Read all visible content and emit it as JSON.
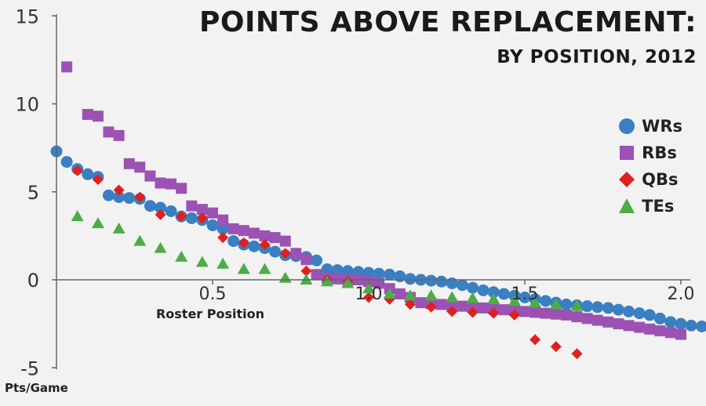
{
  "chart_data": {
    "type": "scatter",
    "title": "POINTS ABOVE REPLACEMENT:",
    "subtitle": "BY POSITION, 2012",
    "xlabel": "Roster Position",
    "ylabel": "Pts/Game",
    "xlim": [
      0.0,
      2.0
    ],
    "ylim": [
      -5,
      15
    ],
    "xticks": [
      {
        "value": 0.5,
        "label": "0.5"
      },
      {
        "value": 1.0,
        "label": "1.0"
      },
      {
        "value": 1.5,
        "label": "1.5"
      },
      {
        "value": 2.0,
        "label": "2.0"
      }
    ],
    "yticks": [
      {
        "value": -5,
        "label": "-5"
      },
      {
        "value": 0,
        "label": "0"
      },
      {
        "value": 5,
        "label": "5"
      },
      {
        "value": 10,
        "label": "10"
      },
      {
        "value": 15,
        "label": "15"
      }
    ],
    "legend_position": "right",
    "series": [
      {
        "name": "WRs",
        "marker": "circle",
        "color": "#3a7fc1",
        "points": [
          [
            0.0,
            7.3
          ],
          [
            0.033,
            6.7
          ],
          [
            0.067,
            6.3
          ],
          [
            0.1,
            6.0
          ],
          [
            0.133,
            5.85
          ],
          [
            0.167,
            4.8
          ],
          [
            0.2,
            4.7
          ],
          [
            0.233,
            4.65
          ],
          [
            0.267,
            4.6
          ],
          [
            0.3,
            4.2
          ],
          [
            0.333,
            4.1
          ],
          [
            0.367,
            3.9
          ],
          [
            0.4,
            3.6
          ],
          [
            0.433,
            3.5
          ],
          [
            0.467,
            3.4
          ],
          [
            0.5,
            3.1
          ],
          [
            0.533,
            2.9
          ],
          [
            0.567,
            2.2
          ],
          [
            0.6,
            2.0
          ],
          [
            0.633,
            1.9
          ],
          [
            0.667,
            1.8
          ],
          [
            0.7,
            1.6
          ],
          [
            0.733,
            1.4
          ],
          [
            0.767,
            1.35
          ],
          [
            0.8,
            1.3
          ],
          [
            0.833,
            1.1
          ],
          [
            0.867,
            0.6
          ],
          [
            0.9,
            0.55
          ],
          [
            0.933,
            0.5
          ],
          [
            0.967,
            0.45
          ],
          [
            1.0,
            0.4
          ],
          [
            1.033,
            0.35
          ],
          [
            1.067,
            0.3
          ],
          [
            1.1,
            0.2
          ],
          [
            1.133,
            0.05
          ],
          [
            1.167,
            0.0
          ],
          [
            1.2,
            -0.05
          ],
          [
            1.233,
            -0.1
          ],
          [
            1.267,
            -0.2
          ],
          [
            1.3,
            -0.3
          ],
          [
            1.333,
            -0.45
          ],
          [
            1.367,
            -0.6
          ],
          [
            1.4,
            -0.7
          ],
          [
            1.433,
            -0.8
          ],
          [
            1.467,
            -0.9
          ],
          [
            1.5,
            -1.0
          ],
          [
            1.533,
            -1.1
          ],
          [
            1.567,
            -1.2
          ],
          [
            1.6,
            -1.3
          ],
          [
            1.633,
            -1.4
          ],
          [
            1.667,
            -1.45
          ],
          [
            1.7,
            -1.5
          ],
          [
            1.733,
            -1.55
          ],
          [
            1.767,
            -1.6
          ],
          [
            1.8,
            -1.7
          ],
          [
            1.833,
            -1.8
          ],
          [
            1.867,
            -1.9
          ],
          [
            1.9,
            -2.0
          ],
          [
            1.933,
            -2.2
          ],
          [
            1.967,
            -2.4
          ],
          [
            2.0,
            -2.5
          ],
          [
            2.033,
            -2.6
          ],
          [
            2.067,
            -2.65
          ],
          [
            2.1,
            -2.7
          ],
          [
            2.133,
            -2.75
          ],
          [
            2.167,
            -2.8
          ],
          [
            2.2,
            -2.8
          ]
        ]
      },
      {
        "name": "RBs",
        "marker": "square",
        "color": "#9b52b3",
        "points": [
          [
            0.033,
            12.1
          ],
          [
            0.1,
            9.4
          ],
          [
            0.133,
            9.3
          ],
          [
            0.167,
            8.4
          ],
          [
            0.2,
            8.2
          ],
          [
            0.233,
            6.6
          ],
          [
            0.267,
            6.4
          ],
          [
            0.3,
            5.9
          ],
          [
            0.333,
            5.5
          ],
          [
            0.367,
            5.45
          ],
          [
            0.4,
            5.2
          ],
          [
            0.433,
            4.2
          ],
          [
            0.467,
            4.0
          ],
          [
            0.5,
            3.8
          ],
          [
            0.533,
            3.4
          ],
          [
            0.567,
            2.9
          ],
          [
            0.6,
            2.8
          ],
          [
            0.633,
            2.65
          ],
          [
            0.667,
            2.5
          ],
          [
            0.7,
            2.4
          ],
          [
            0.733,
            2.2
          ],
          [
            0.767,
            1.5
          ],
          [
            0.8,
            1.15
          ],
          [
            0.833,
            0.3
          ],
          [
            0.867,
            0.1
          ],
          [
            0.9,
            0.05
          ],
          [
            0.933,
            0.0
          ],
          [
            0.967,
            0.0
          ],
          [
            1.0,
            -0.1
          ],
          [
            1.033,
            -0.2
          ],
          [
            1.067,
            -0.5
          ],
          [
            1.1,
            -0.8
          ],
          [
            1.133,
            -1.0
          ],
          [
            1.167,
            -1.3
          ],
          [
            1.2,
            -1.35
          ],
          [
            1.233,
            -1.4
          ],
          [
            1.267,
            -1.5
          ],
          [
            1.3,
            -1.5
          ],
          [
            1.333,
            -1.55
          ],
          [
            1.367,
            -1.6
          ],
          [
            1.4,
            -1.65
          ],
          [
            1.433,
            -1.7
          ],
          [
            1.467,
            -1.75
          ],
          [
            1.5,
            -1.8
          ],
          [
            1.533,
            -1.85
          ],
          [
            1.567,
            -1.9
          ],
          [
            1.6,
            -1.95
          ],
          [
            1.633,
            -2.0
          ],
          [
            1.667,
            -2.1
          ],
          [
            1.7,
            -2.2
          ],
          [
            1.733,
            -2.3
          ],
          [
            1.767,
            -2.4
          ],
          [
            1.8,
            -2.5
          ],
          [
            1.833,
            -2.6
          ],
          [
            1.867,
            -2.7
          ],
          [
            1.9,
            -2.8
          ],
          [
            1.933,
            -2.9
          ],
          [
            1.967,
            -3.0
          ],
          [
            2.0,
            -3.1
          ]
        ]
      },
      {
        "name": "QBs",
        "marker": "diamond",
        "color": "#e0201f",
        "points": [
          [
            0.067,
            6.2
          ],
          [
            0.133,
            5.7
          ],
          [
            0.2,
            5.1
          ],
          [
            0.267,
            4.7
          ],
          [
            0.333,
            3.7
          ],
          [
            0.4,
            3.6
          ],
          [
            0.467,
            3.5
          ],
          [
            0.533,
            2.4
          ],
          [
            0.6,
            2.1
          ],
          [
            0.667,
            2.0
          ],
          [
            0.733,
            1.5
          ],
          [
            0.8,
            0.5
          ],
          [
            0.867,
            0.0
          ],
          [
            0.933,
            -0.1
          ],
          [
            1.0,
            -1.0
          ],
          [
            1.067,
            -1.1
          ],
          [
            1.133,
            -1.4
          ],
          [
            1.2,
            -1.55
          ],
          [
            1.267,
            -1.8
          ],
          [
            1.333,
            -1.85
          ],
          [
            1.4,
            -1.9
          ],
          [
            1.467,
            -2.0
          ],
          [
            1.533,
            -3.4
          ],
          [
            1.6,
            -3.8
          ],
          [
            1.667,
            -4.2
          ]
        ]
      },
      {
        "name": "TEs",
        "marker": "triangle",
        "color": "#4cad48",
        "points": [
          [
            0.067,
            3.6
          ],
          [
            0.133,
            3.2
          ],
          [
            0.2,
            2.9
          ],
          [
            0.267,
            2.2
          ],
          [
            0.333,
            1.8
          ],
          [
            0.4,
            1.3
          ],
          [
            0.467,
            1.0
          ],
          [
            0.533,
            0.9
          ],
          [
            0.6,
            0.6
          ],
          [
            0.667,
            0.6
          ],
          [
            0.733,
            0.1
          ],
          [
            0.8,
            0.0
          ],
          [
            0.867,
            -0.1
          ],
          [
            0.933,
            -0.2
          ],
          [
            1.0,
            -0.5
          ],
          [
            1.067,
            -0.8
          ],
          [
            1.133,
            -0.9
          ],
          [
            1.2,
            -0.9
          ],
          [
            1.267,
            -1.0
          ],
          [
            1.333,
            -1.05
          ],
          [
            1.4,
            -1.1
          ],
          [
            1.467,
            -1.2
          ],
          [
            1.533,
            -1.3
          ],
          [
            1.6,
            -1.4
          ],
          [
            1.667,
            -1.5
          ]
        ]
      }
    ]
  }
}
